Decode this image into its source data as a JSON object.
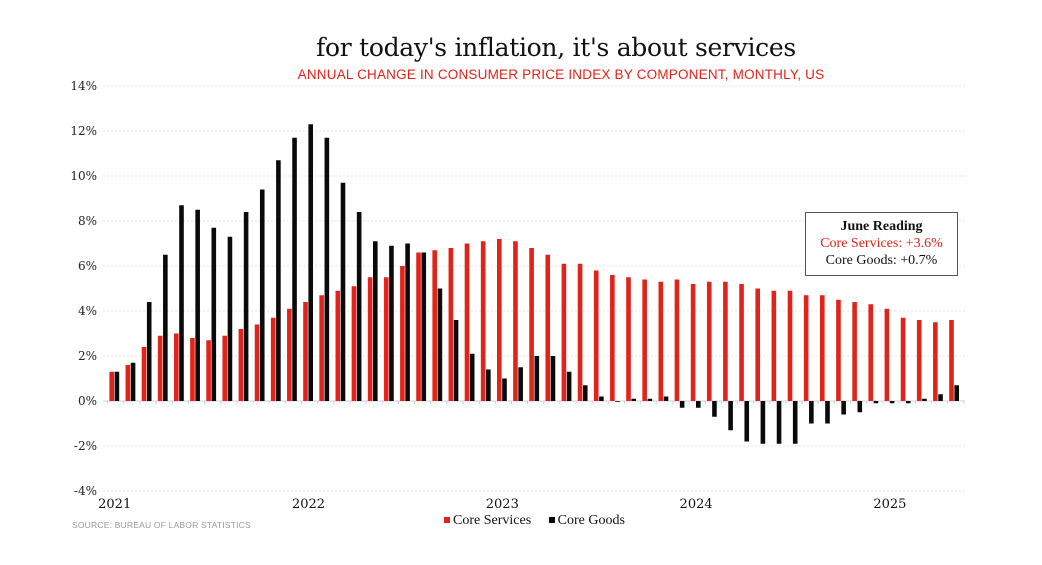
{
  "colors": {
    "services": "#e2231a",
    "goods": "#0a0a0a",
    "grid": "#e4e4e4",
    "annotation_border": "#555555"
  },
  "chart_data": {
    "type": "bar",
    "title": "for today's inflation, it's about services",
    "subtitle": "ANNUAL CHANGE IN CONSUMER PRICE INDEX BY COMPONENT, MONTHLY, US",
    "xlabel": "",
    "ylabel": "",
    "ylim": [
      -4,
      14
    ],
    "yticks": [
      14,
      12,
      10,
      8,
      6,
      4,
      2,
      0,
      -2,
      -4
    ],
    "ytick_labels": [
      "14%",
      "12%",
      "10%",
      "8%",
      "6%",
      "4%",
      "2%",
      "0%",
      "-2%",
      "-4%"
    ],
    "xtick_labels": [
      {
        "label": "2021",
        "index": 0
      },
      {
        "label": "2022",
        "index": 12
      },
      {
        "label": "2023",
        "index": 24
      },
      {
        "label": "2024",
        "index": 36
      },
      {
        "label": "2025",
        "index": 48
      }
    ],
    "grid": true,
    "legend_position": "bottom-center",
    "categories": [
      "Feb 2021",
      "Mar 2021",
      "Apr 2021",
      "May 2021",
      "Jun 2021",
      "Jul 2021",
      "Aug 2021",
      "Sep 2021",
      "Oct 2021",
      "Nov 2021",
      "Dec 2021",
      "Jan 2022",
      "Feb 2022",
      "Mar 2022",
      "Apr 2022",
      "May 2022",
      "Jun 2022",
      "Jul 2022",
      "Aug 2022",
      "Sep 2022",
      "Oct 2022",
      "Nov 2022",
      "Dec 2022",
      "Jan 2023",
      "Feb 2023",
      "Mar 2023",
      "Apr 2023",
      "May 2023",
      "Jun 2023",
      "Jul 2023",
      "Aug 2023",
      "Sep 2023",
      "Oct 2023",
      "Nov 2023",
      "Dec 2023",
      "Jan 2024",
      "Feb 2024",
      "Mar 2024",
      "Apr 2024",
      "May 2024",
      "Jun 2024",
      "Jul 2024",
      "Aug 2024",
      "Sep 2024",
      "Oct 2024",
      "Nov 2024",
      "Dec 2024",
      "Jan 2025",
      "Feb 2025",
      "Mar 2025",
      "Apr 2025",
      "May 2025",
      "Jun 2025"
    ],
    "series": [
      {
        "name": "Core Services",
        "color": "#e2231a",
        "values": [
          1.3,
          1.6,
          2.4,
          2.9,
          3.0,
          2.8,
          2.7,
          2.9,
          3.2,
          3.4,
          3.7,
          4.1,
          4.4,
          4.7,
          4.9,
          5.1,
          5.5,
          5.5,
          6.0,
          6.6,
          6.7,
          6.8,
          7.0,
          7.1,
          7.2,
          7.1,
          6.8,
          6.5,
          6.1,
          6.1,
          5.8,
          5.6,
          5.5,
          5.4,
          5.3,
          5.4,
          5.2,
          5.3,
          5.3,
          5.2,
          5.0,
          4.9,
          4.9,
          4.7,
          4.7,
          4.5,
          4.4,
          4.3,
          4.1,
          3.7,
          3.6,
          3.5,
          3.6
        ]
      },
      {
        "name": "Core Goods",
        "color": "#0a0a0a",
        "values": [
          1.3,
          1.7,
          4.4,
          6.5,
          8.7,
          8.5,
          7.7,
          7.3,
          8.4,
          9.4,
          10.7,
          11.7,
          12.3,
          11.7,
          9.7,
          8.4,
          7.1,
          6.9,
          7.0,
          6.6,
          5.0,
          3.6,
          2.1,
          1.4,
          1.0,
          1.5,
          2.0,
          2.0,
          1.3,
          0.7,
          0.2,
          0.0,
          0.1,
          0.1,
          0.2,
          -0.3,
          -0.3,
          -0.7,
          -1.3,
          -1.8,
          -1.9,
          -1.9,
          -1.9,
          -1.0,
          -1.0,
          -0.6,
          -0.5,
          -0.1,
          -0.1,
          -0.1,
          0.1,
          0.3,
          0.7
        ]
      }
    ],
    "annotation": {
      "title": "June Reading",
      "services_text": "Core Services: +3.6%",
      "goods_text": "Core Goods: +0.7%"
    },
    "legend": [
      {
        "label": "Core Services",
        "color": "#e2231a"
      },
      {
        "label": "Core Goods",
        "color": "#0a0a0a"
      }
    ],
    "source": "SOURCE: BUREAU OF LABOR STATISTICS"
  }
}
